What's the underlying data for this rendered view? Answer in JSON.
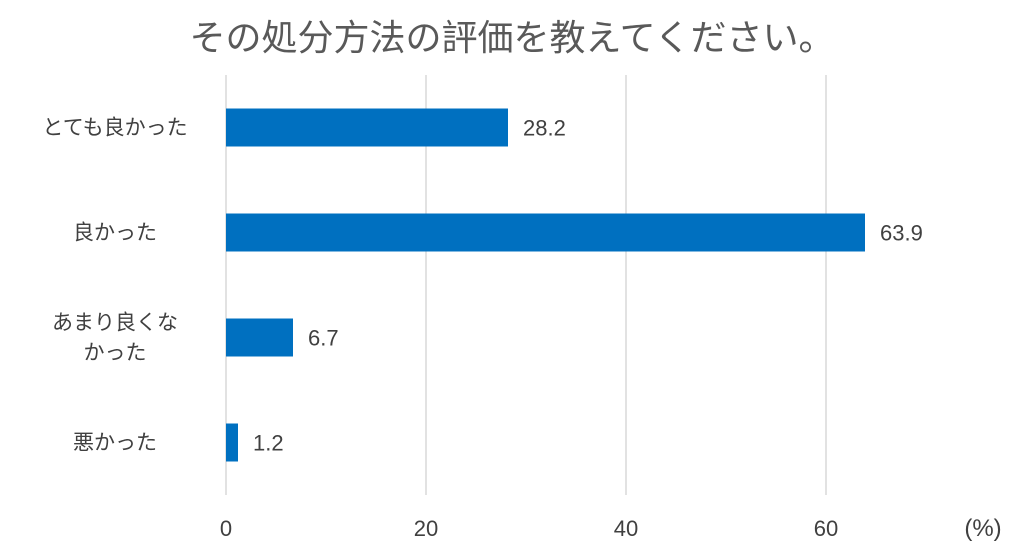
{
  "chart_data": {
    "type": "bar",
    "orientation": "horizontal",
    "title": "その処分方法の評価を教えてください。",
    "categories": [
      [
        "とても良かった"
      ],
      [
        "良かった"
      ],
      [
        "あまり良くな",
        "かった"
      ],
      [
        "悪かった"
      ]
    ],
    "values": [
      28.2,
      63.9,
      6.7,
      1.2
    ],
    "value_labels": [
      "28.2",
      "63.9",
      "6.7",
      "1.2"
    ],
    "x_ticks": [
      0,
      20,
      40,
      60
    ],
    "x_tick_labels": [
      "0",
      "20",
      "40",
      "60"
    ],
    "xlim": [
      0,
      70
    ],
    "unit_label": "(%)",
    "bar_color": "#0070C0",
    "grid": "vertical"
  }
}
